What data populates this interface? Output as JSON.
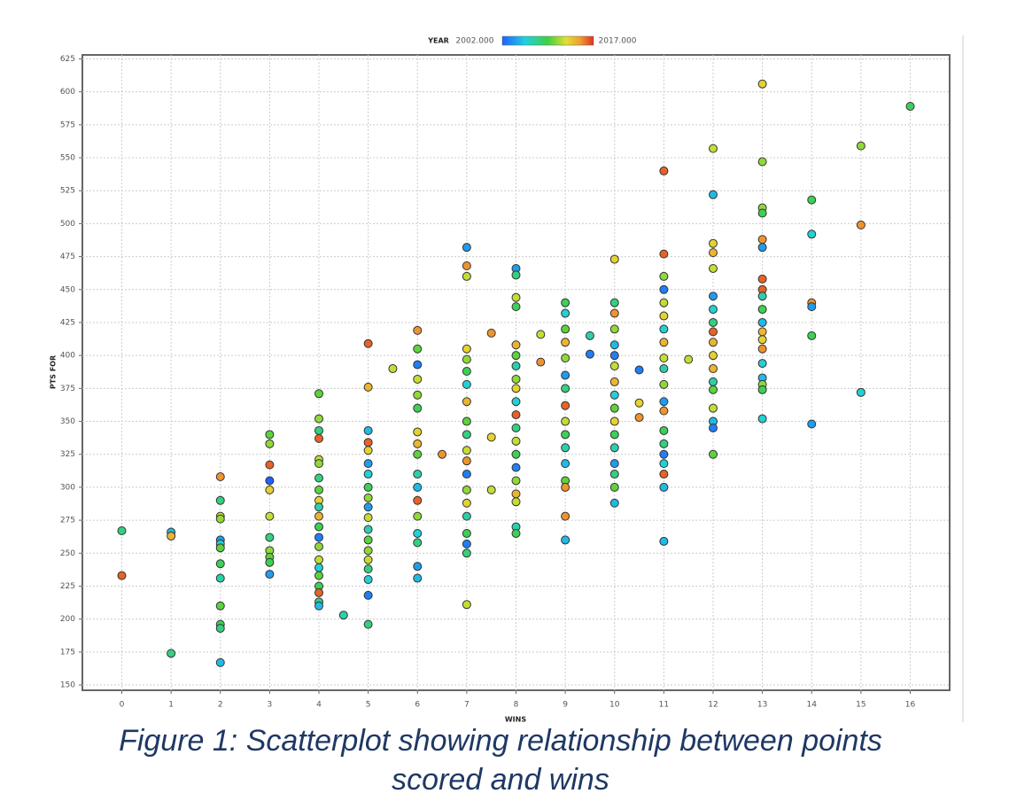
{
  "chart_data": {
    "type": "scatter",
    "xlabel": "WINS",
    "ylabel": "PTS FOR",
    "colorbar": {
      "label": "YEAR",
      "range": [
        {
          "value": 2002,
          "label": "2002.000"
        },
        {
          "value": 2017,
          "label": "2017.000"
        }
      ]
    },
    "caption": [
      "Figure 1: Scatterplot showing relationship between points",
      "scored and wins"
    ],
    "xlim": [
      -0.8,
      16.8
    ],
    "ylim": [
      146,
      628
    ],
    "xticks": [
      0,
      1,
      2,
      3,
      4,
      5,
      6,
      7,
      8,
      9,
      10,
      11,
      12,
      13,
      14,
      15,
      16
    ],
    "yticks": [
      150,
      175,
      200,
      225,
      250,
      275,
      300,
      325,
      350,
      375,
      400,
      425,
      450,
      475,
      500,
      525,
      550,
      575,
      600,
      625
    ],
    "grid": true,
    "series": [
      {
        "x": [
          0,
          0,
          1,
          1,
          1,
          2,
          2,
          2,
          2,
          2,
          2,
          2,
          2,
          2,
          2,
          2,
          2,
          2,
          3,
          3,
          3,
          3,
          3,
          3,
          3,
          3,
          3,
          3,
          3,
          4,
          4,
          4,
          4,
          4,
          4,
          4,
          4,
          4,
          4,
          4,
          4,
          4,
          4,
          4,
          4,
          4,
          4,
          4,
          4,
          4,
          4.5,
          5,
          5,
          5,
          5,
          5,
          5,
          5,
          5,
          5,
          5,
          5,
          5,
          5,
          5,
          5,
          5,
          5,
          5,
          5,
          5.5,
          6,
          6,
          6,
          6,
          6,
          6,
          6,
          6,
          6,
          6,
          6,
          6,
          6,
          6,
          6,
          6,
          6,
          6.5,
          7,
          7,
          7,
          7,
          7,
          7,
          7,
          7,
          7,
          7,
          7,
          7,
          7,
          7,
          7,
          7,
          7,
          7,
          7,
          7,
          7.5,
          7.5,
          7.5,
          8,
          8,
          8,
          8,
          8,
          8,
          8,
          8,
          8,
          8,
          8,
          8,
          8,
          8,
          8,
          8,
          8,
          8,
          8,
          8,
          8.5,
          8.5,
          9,
          9,
          9,
          9,
          9,
          9,
          9,
          9,
          9,
          9,
          9,
          9,
          9,
          9,
          9,
          9,
          9.5,
          9.5,
          10,
          10,
          10,
          10,
          10,
          10,
          10,
          10,
          10,
          10,
          10,
          10,
          10,
          10,
          10,
          10,
          10,
          10.5,
          10.5,
          10.5,
          11,
          11,
          11,
          11,
          11,
          11,
          11,
          11,
          11,
          11,
          11,
          11,
          11,
          11,
          11,
          11,
          11,
          11,
          11,
          11,
          11.5,
          12,
          12,
          12,
          12,
          12,
          12,
          12,
          12,
          12,
          12,
          12,
          12,
          12,
          12,
          12,
          12,
          12,
          12,
          13,
          13,
          13,
          13,
          13,
          13,
          13,
          13,
          13,
          13,
          13,
          13,
          13,
          13,
          13,
          13,
          13,
          13,
          13,
          14,
          14,
          14,
          14,
          14,
          14,
          15,
          15,
          15,
          16
        ],
        "values": [
          267,
          233,
          266,
          263,
          174,
          308,
          290,
          278,
          276,
          260,
          257,
          254,
          242,
          231,
          210,
          196,
          193,
          167,
          340,
          333,
          317,
          305,
          298,
          278,
          262,
          252,
          247,
          243,
          234,
          371,
          352,
          343,
          337,
          321,
          318,
          307,
          298,
          290,
          285,
          278,
          270,
          262,
          255,
          245,
          239,
          233,
          225,
          220,
          213,
          210,
          203,
          409,
          376,
          343,
          334,
          328,
          318,
          310,
          300,
          292,
          285,
          277,
          268,
          260,
          252,
          245,
          238,
          230,
          218,
          196,
          390,
          419,
          405,
          393,
          382,
          370,
          360,
          342,
          333,
          325,
          310,
          300,
          290,
          278,
          265,
          258,
          240,
          231,
          325,
          482,
          468,
          460,
          405,
          397,
          388,
          378,
          365,
          350,
          340,
          328,
          320,
          310,
          298,
          288,
          278,
          265,
          257,
          250,
          211,
          417,
          338,
          298,
          466,
          461,
          444,
          437,
          408,
          400,
          392,
          382,
          375,
          365,
          355,
          345,
          335,
          325,
          315,
          305,
          295,
          289,
          270,
          265,
          416,
          395,
          440,
          432,
          420,
          410,
          398,
          385,
          375,
          362,
          350,
          340,
          330,
          318,
          305,
          300,
          278,
          260,
          415,
          401,
          473,
          440,
          432,
          420,
          408,
          400,
          392,
          380,
          370,
          360,
          350,
          340,
          330,
          318,
          310,
          300,
          288,
          389,
          364,
          353,
          540,
          477,
          460,
          450,
          440,
          430,
          420,
          410,
          398,
          390,
          378,
          365,
          358,
          343,
          333,
          325,
          318,
          310,
          300,
          259,
          397,
          557,
          522,
          485,
          478,
          466,
          445,
          435,
          425,
          418,
          410,
          400,
          390,
          380,
          374,
          360,
          350,
          345,
          325,
          606,
          547,
          512,
          508,
          488,
          482,
          458,
          450,
          445,
          435,
          425,
          418,
          412,
          405,
          394,
          383,
          378,
          374,
          352,
          518,
          492,
          440,
          437,
          415,
          348,
          559,
          499,
          372,
          589
        ],
        "color_values": [
          2008,
          2016,
          2005,
          2014,
          2008,
          2015,
          2008,
          2012,
          2011,
          2004,
          2006,
          2010,
          2009,
          2007,
          2010,
          2009,
          2008,
          2005,
          2010,
          2011,
          2016,
          2002,
          2013,
          2012,
          2008,
          2011,
          2010,
          2009,
          2004,
          2010,
          2011,
          2008,
          2016,
          2012,
          2011,
          2008,
          2010,
          2013,
          2007,
          2014,
          2009,
          2003,
          2011,
          2012,
          2006,
          2010,
          2009,
          2016,
          2008,
          2005,
          2007,
          2016,
          2014,
          2005,
          2016,
          2013,
          2004,
          2006,
          2009,
          2011,
          2004,
          2012,
          2007,
          2010,
          2011,
          2012,
          2008,
          2006,
          2003,
          2008,
          2012,
          2015,
          2010,
          2003,
          2012,
          2011,
          2009,
          2013,
          2014,
          2010,
          2007,
          2005,
          2016,
          2011,
          2006,
          2008,
          2004,
          2005,
          2015,
          2004,
          2015,
          2012,
          2013,
          2011,
          2009,
          2006,
          2014,
          2010,
          2008,
          2012,
          2015,
          2003,
          2011,
          2013,
          2007,
          2009,
          2003,
          2008,
          2012,
          2015,
          2013,
          2012,
          2004,
          2008,
          2012,
          2009,
          2014,
          2010,
          2007,
          2011,
          2013,
          2006,
          2016,
          2008,
          2012,
          2009,
          2003,
          2011,
          2014,
          2012,
          2007,
          2009,
          2012,
          2015,
          2009,
          2006,
          2010,
          2014,
          2011,
          2004,
          2008,
          2016,
          2012,
          2009,
          2007,
          2005,
          2010,
          2015,
          2015,
          2005,
          2007,
          2003,
          2013,
          2008,
          2015,
          2011,
          2005,
          2003,
          2012,
          2014,
          2006,
          2010,
          2013,
          2009,
          2007,
          2004,
          2008,
          2010,
          2005,
          2003,
          2013,
          2015,
          2016,
          2016,
          2011,
          2003,
          2012,
          2013,
          2006,
          2014,
          2012,
          2007,
          2011,
          2004,
          2015,
          2009,
          2008,
          2003,
          2006,
          2016,
          2005,
          2005,
          2012,
          2012,
          2005,
          2013,
          2014,
          2012,
          2004,
          2006,
          2008,
          2016,
          2014,
          2013,
          2014,
          2007,
          2010,
          2012,
          2005,
          2003,
          2010,
          2013,
          2011,
          2011,
          2009,
          2015,
          2004,
          2016,
          2016,
          2007,
          2009,
          2005,
          2014,
          2013,
          2015,
          2006,
          2005,
          2011,
          2009,
          2006,
          2009,
          2006,
          2015,
          2004,
          2009,
          2004,
          2011,
          2015,
          2006,
          2009
        ]
      }
    ]
  }
}
